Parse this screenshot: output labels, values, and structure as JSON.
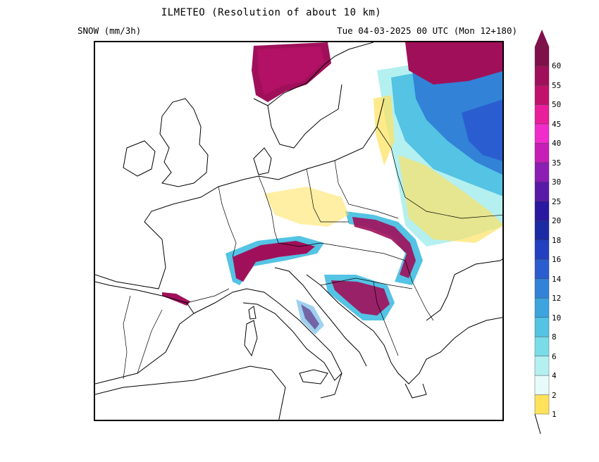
{
  "header": {
    "title": "ILMETEO (Resolution of about 10 km)",
    "variable": "SNOW (mm/3h)",
    "valid_time": "Tue 04-03-2025 00 UTC (Mon 12+180)"
  },
  "legend": {
    "levels": [
      "1",
      "2",
      "4",
      "6",
      "8",
      "10",
      "12",
      "14",
      "16",
      "18",
      "20",
      "25",
      "30",
      "35",
      "40",
      "45",
      "50",
      "55",
      "60"
    ],
    "colors": [
      "#ffe15a",
      "#e8fbfb",
      "#b4f0f0",
      "#7adce8",
      "#54c3e4",
      "#3ea4e0",
      "#3282d8",
      "#2a5ed0",
      "#2240c0",
      "#1c2aa4",
      "#2a18a0",
      "#5a1aa8",
      "#8c1eb4",
      "#c81eb8",
      "#f02ccc",
      "#e81e9a",
      "#c0126c",
      "#a0105a",
      "#80104a"
    ]
  },
  "map": {
    "land_color": "#ffffff",
    "border_color": "#000000",
    "snow_palette": {
      "light": "#b4f0f0",
      "medium": "#54c3e4",
      "heavy": "#3ea4e0",
      "very_heavy": "#2a5ed0",
      "extreme": "#a0105a",
      "trace": "#ffe15a"
    }
  }
}
